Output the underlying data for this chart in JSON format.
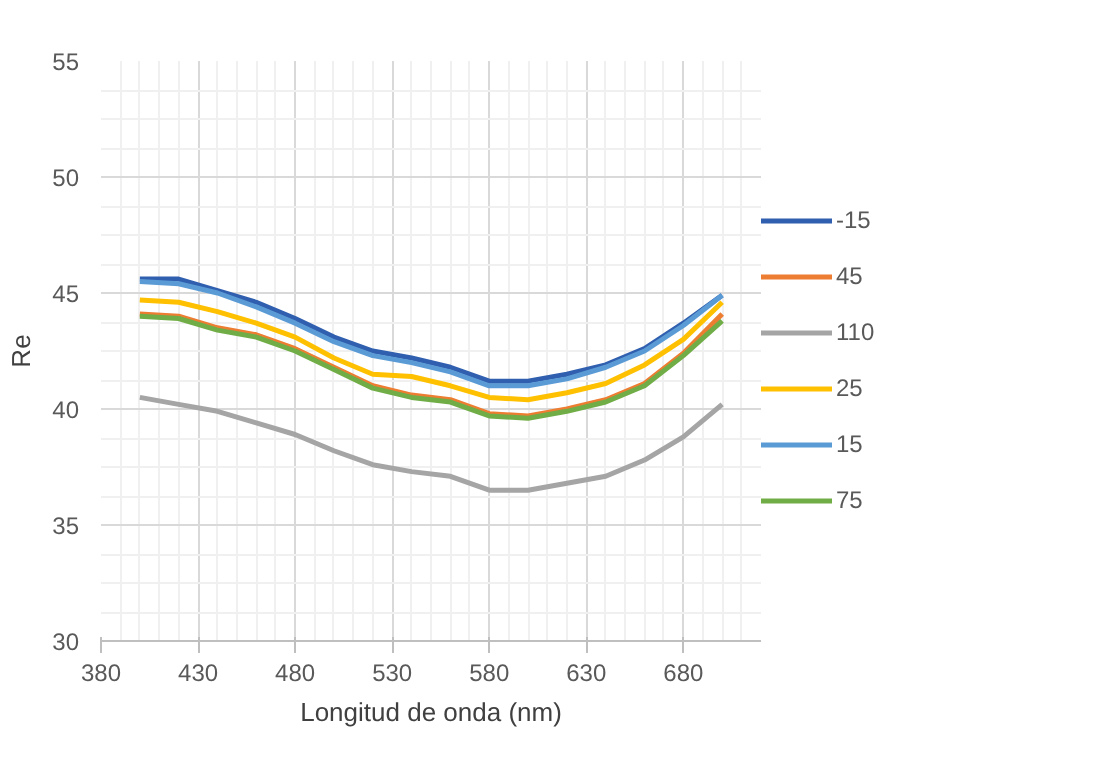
{
  "chart_data": {
    "type": "line",
    "xlabel": "Longitud de onda (nm)",
    "ylabel": "Re",
    "x": [
      400,
      420,
      440,
      460,
      480,
      500,
      520,
      540,
      560,
      580,
      600,
      620,
      640,
      660,
      680,
      700
    ],
    "series": [
      {
        "name": "-15",
        "color": "#2f5fae",
        "values": [
          45.6,
          45.6,
          45.1,
          44.6,
          43.9,
          43.1,
          42.5,
          42.2,
          41.8,
          41.2,
          41.2,
          41.5,
          41.9,
          42.6,
          43.7,
          44.9
        ]
      },
      {
        "name": "45",
        "color": "#ed7d31",
        "values": [
          44.1,
          44.0,
          43.5,
          43.2,
          42.6,
          41.8,
          41.0,
          40.6,
          40.4,
          39.8,
          39.7,
          40.0,
          40.4,
          41.1,
          42.4,
          44.1
        ]
      },
      {
        "name": "110",
        "color": "#a5a5a5",
        "values": [
          40.5,
          40.2,
          39.9,
          39.4,
          38.9,
          38.2,
          37.6,
          37.3,
          37.1,
          36.5,
          36.5,
          36.8,
          37.1,
          37.8,
          38.8,
          40.2
        ]
      },
      {
        "name": "25",
        "color": "#ffc000",
        "values": [
          44.7,
          44.6,
          44.2,
          43.7,
          43.1,
          42.2,
          41.5,
          41.4,
          41.0,
          40.5,
          40.4,
          40.7,
          41.1,
          41.9,
          43.0,
          44.6
        ]
      },
      {
        "name": "15",
        "color": "#5b9bd5",
        "values": [
          45.5,
          45.4,
          45.0,
          44.4,
          43.7,
          42.9,
          42.3,
          42.0,
          41.6,
          41.0,
          41.0,
          41.3,
          41.8,
          42.5,
          43.6,
          44.9
        ]
      },
      {
        "name": "75",
        "color": "#70ad47",
        "values": [
          44.0,
          43.9,
          43.4,
          43.1,
          42.5,
          41.7,
          40.9,
          40.5,
          40.3,
          39.7,
          39.6,
          39.9,
          40.3,
          41.0,
          42.3,
          43.8
        ]
      }
    ],
    "xlim": [
      380,
      720
    ],
    "xticks": [
      380,
      430,
      480,
      530,
      580,
      630,
      680
    ],
    "ylim": [
      30,
      55
    ],
    "yticks": [
      30,
      35,
      40,
      45,
      50,
      55
    ],
    "grid": true,
    "legend": "right",
    "marker": "none",
    "line_style": "solid"
  }
}
